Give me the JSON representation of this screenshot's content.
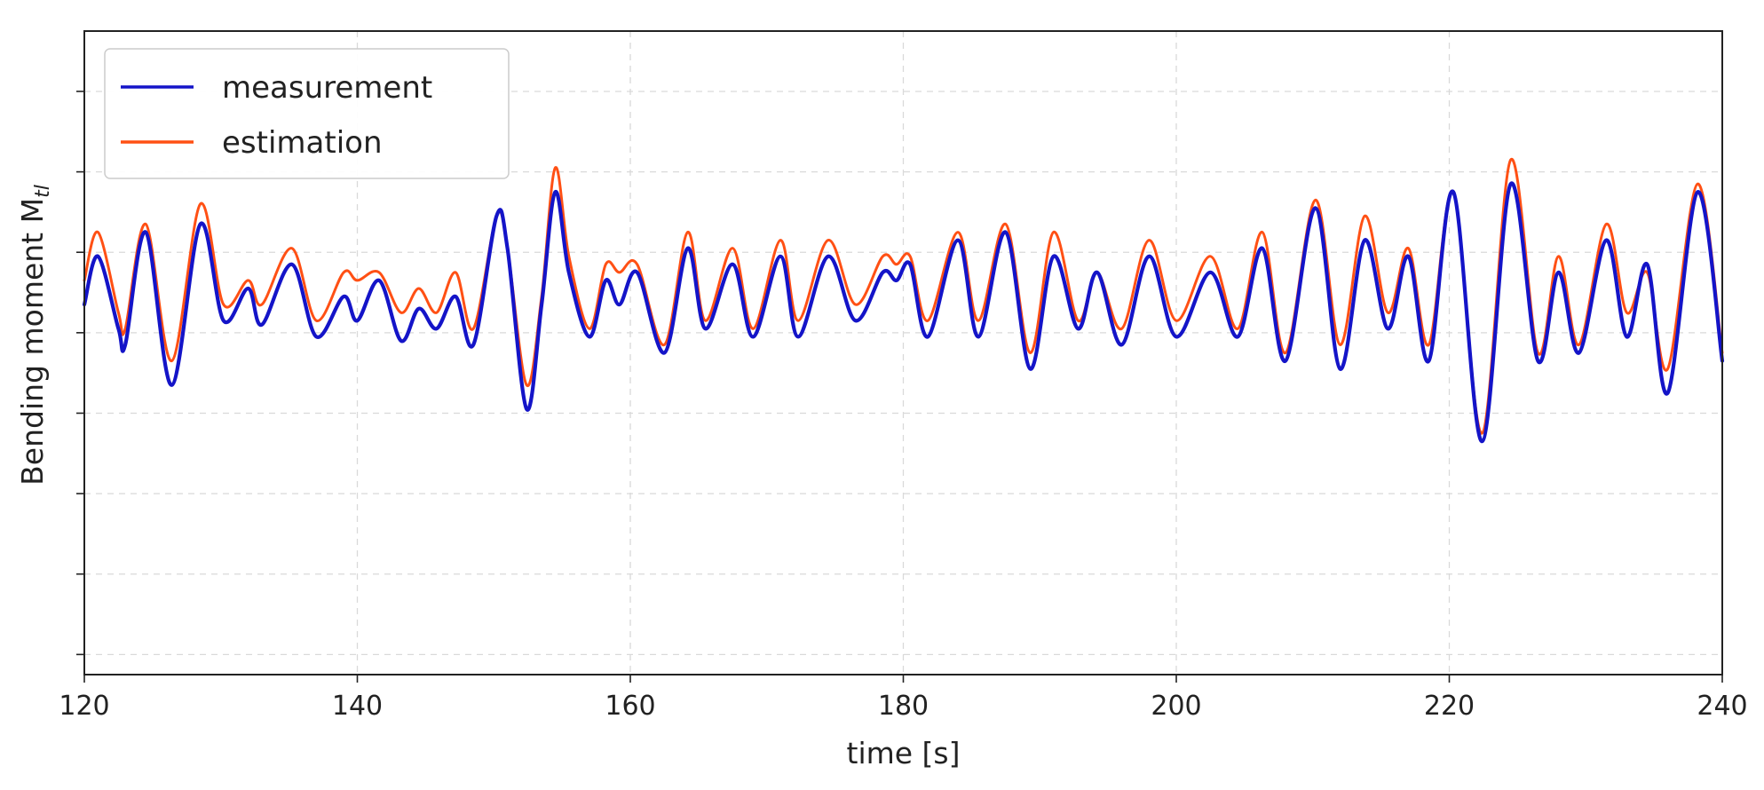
{
  "chart_data": {
    "type": "line",
    "xlabel": "time [s]",
    "ylabel": "Bending moment M",
    "ylabel_subscript": "tl",
    "xlim": [
      120,
      240
    ],
    "ylim": [
      0,
      8
    ],
    "x_ticks": [
      "120",
      "140",
      "160",
      "180",
      "200",
      "220",
      "240"
    ],
    "y_tick_count": 8,
    "grid": true,
    "legend_position": "upper-left",
    "series": [
      {
        "name": "measurement",
        "color": "#1414c8",
        "points": [
          [
            120.0,
            4.6
          ],
          [
            121.0,
            5.2
          ],
          [
            122.5,
            4.3
          ],
          [
            123.0,
            4.1
          ],
          [
            124.5,
            5.5
          ],
          [
            126.4,
            3.6
          ],
          [
            128.5,
            5.6
          ],
          [
            130.2,
            4.4
          ],
          [
            132.0,
            4.8
          ],
          [
            133.0,
            4.35
          ],
          [
            135.2,
            5.1
          ],
          [
            137.0,
            4.2
          ],
          [
            139.0,
            4.7
          ],
          [
            140.0,
            4.4
          ],
          [
            141.6,
            4.9
          ],
          [
            143.2,
            4.15
          ],
          [
            144.5,
            4.55
          ],
          [
            145.8,
            4.3
          ],
          [
            147.2,
            4.7
          ],
          [
            148.5,
            4.1
          ],
          [
            150.2,
            5.7
          ],
          [
            151.0,
            5.3
          ],
          [
            152.4,
            3.3
          ],
          [
            153.5,
            4.6
          ],
          [
            154.5,
            6.0
          ],
          [
            155.5,
            5.0
          ],
          [
            157.0,
            4.2
          ],
          [
            158.2,
            4.9
          ],
          [
            159.2,
            4.6
          ],
          [
            160.5,
            5.0
          ],
          [
            162.5,
            4.0
          ],
          [
            164.2,
            5.3
          ],
          [
            165.5,
            4.3
          ],
          [
            167.5,
            5.1
          ],
          [
            169.0,
            4.2
          ],
          [
            171.0,
            5.2
          ],
          [
            172.3,
            4.2
          ],
          [
            174.5,
            5.2
          ],
          [
            176.5,
            4.4
          ],
          [
            178.5,
            5.0
          ],
          [
            179.5,
            4.9
          ],
          [
            180.5,
            5.1
          ],
          [
            181.8,
            4.2
          ],
          [
            184.0,
            5.4
          ],
          [
            185.5,
            4.2
          ],
          [
            187.5,
            5.5
          ],
          [
            189.3,
            3.8
          ],
          [
            191.0,
            5.2
          ],
          [
            192.8,
            4.3
          ],
          [
            194.2,
            5.0
          ],
          [
            196.0,
            4.1
          ],
          [
            198.0,
            5.2
          ],
          [
            200.0,
            4.2
          ],
          [
            202.5,
            5.0
          ],
          [
            204.5,
            4.2
          ],
          [
            206.3,
            5.3
          ],
          [
            208.0,
            3.9
          ],
          [
            210.2,
            5.8
          ],
          [
            212.0,
            3.8
          ],
          [
            213.8,
            5.4
          ],
          [
            215.5,
            4.3
          ],
          [
            217.0,
            5.2
          ],
          [
            218.5,
            3.9
          ],
          [
            220.3,
            6.0
          ],
          [
            222.4,
            2.9
          ],
          [
            224.5,
            6.1
          ],
          [
            226.5,
            3.9
          ],
          [
            228.0,
            5.0
          ],
          [
            229.5,
            4.0
          ],
          [
            231.5,
            5.4
          ],
          [
            233.0,
            4.2
          ],
          [
            234.5,
            5.1
          ],
          [
            236.0,
            3.5
          ],
          [
            238.2,
            6.0
          ],
          [
            240.0,
            3.9
          ]
        ]
      },
      {
        "name": "estimation",
        "color": "#ff5014",
        "points": [
          [
            120.0,
            4.9
          ],
          [
            121.0,
            5.5
          ],
          [
            122.5,
            4.5
          ],
          [
            123.0,
            4.3
          ],
          [
            124.5,
            5.6
          ],
          [
            126.4,
            3.9
          ],
          [
            128.5,
            5.85
          ],
          [
            130.2,
            4.6
          ],
          [
            132.0,
            4.9
          ],
          [
            133.0,
            4.6
          ],
          [
            135.2,
            5.3
          ],
          [
            137.0,
            4.4
          ],
          [
            139.0,
            5.0
          ],
          [
            140.0,
            4.9
          ],
          [
            141.6,
            5.0
          ],
          [
            143.2,
            4.5
          ],
          [
            144.5,
            4.8
          ],
          [
            145.8,
            4.5
          ],
          [
            147.2,
            5.0
          ],
          [
            148.5,
            4.3
          ],
          [
            150.2,
            5.7
          ],
          [
            151.0,
            5.3
          ],
          [
            152.4,
            3.6
          ],
          [
            153.5,
            4.7
          ],
          [
            154.5,
            6.3
          ],
          [
            155.5,
            5.2
          ],
          [
            157.0,
            4.3
          ],
          [
            158.2,
            5.1
          ],
          [
            159.2,
            5.0
          ],
          [
            160.5,
            5.1
          ],
          [
            162.5,
            4.1
          ],
          [
            164.2,
            5.5
          ],
          [
            165.5,
            4.4
          ],
          [
            167.5,
            5.3
          ],
          [
            169.0,
            4.3
          ],
          [
            171.0,
            5.4
          ],
          [
            172.3,
            4.4
          ],
          [
            174.5,
            5.4
          ],
          [
            176.5,
            4.6
          ],
          [
            178.5,
            5.2
          ],
          [
            179.5,
            5.1
          ],
          [
            180.5,
            5.2
          ],
          [
            181.8,
            4.4
          ],
          [
            184.0,
            5.5
          ],
          [
            185.5,
            4.4
          ],
          [
            187.5,
            5.6
          ],
          [
            189.3,
            4.0
          ],
          [
            191.0,
            5.5
          ],
          [
            192.8,
            4.4
          ],
          [
            194.2,
            5.0
          ],
          [
            196.0,
            4.3
          ],
          [
            198.0,
            5.4
          ],
          [
            200.0,
            4.4
          ],
          [
            202.5,
            5.2
          ],
          [
            204.5,
            4.3
          ],
          [
            206.3,
            5.5
          ],
          [
            208.0,
            4.0
          ],
          [
            210.2,
            5.9
          ],
          [
            212.0,
            4.1
          ],
          [
            213.8,
            5.7
          ],
          [
            215.5,
            4.5
          ],
          [
            217.0,
            5.3
          ],
          [
            218.5,
            4.1
          ],
          [
            220.3,
            6.0
          ],
          [
            222.4,
            3.0
          ],
          [
            224.5,
            6.4
          ],
          [
            226.5,
            4.0
          ],
          [
            228.0,
            5.2
          ],
          [
            229.5,
            4.1
          ],
          [
            231.5,
            5.6
          ],
          [
            233.0,
            4.5
          ],
          [
            234.5,
            5.0
          ],
          [
            236.0,
            3.8
          ],
          [
            238.2,
            6.1
          ],
          [
            240.0,
            4.0
          ]
        ]
      }
    ]
  }
}
